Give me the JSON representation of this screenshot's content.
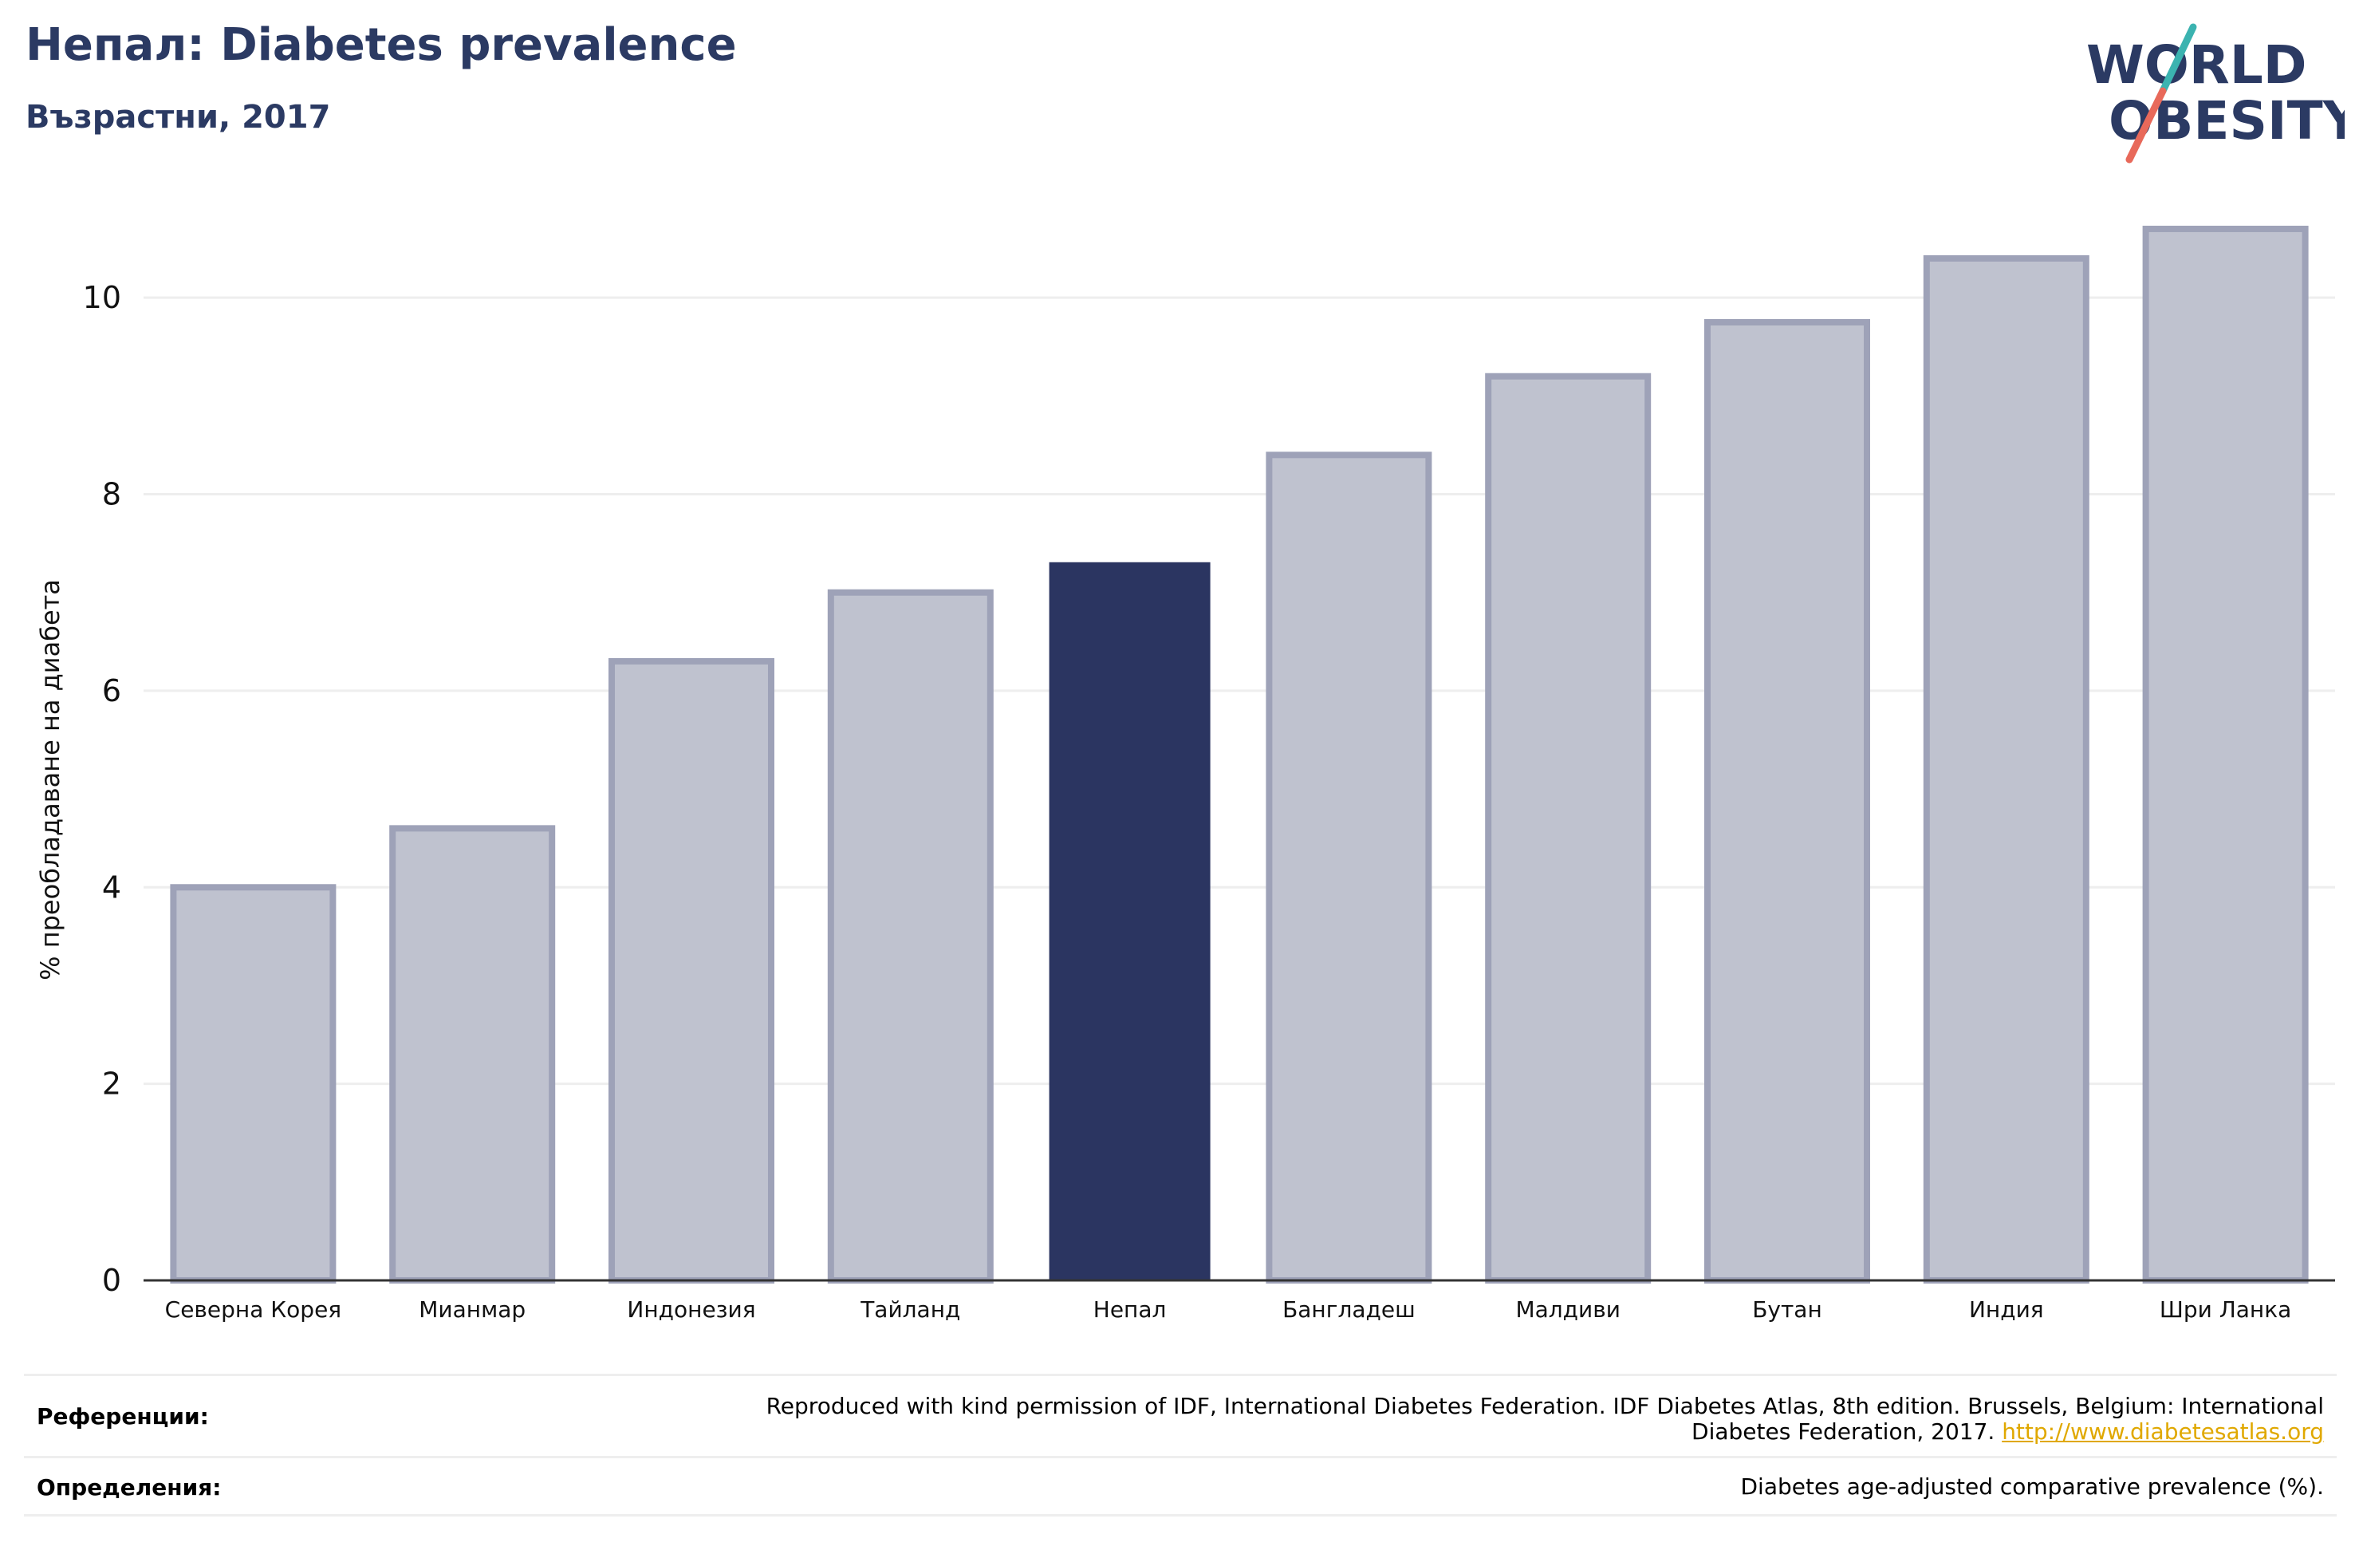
{
  "header": {
    "title": "Непал: Diabetes prevalence",
    "subtitle": "Възрастни, 2017"
  },
  "logo": {
    "line1": "WORLD",
    "line2": "OBESITY",
    "colors": {
      "navy": "#2b3a63",
      "teal": "#3bb3b0",
      "coral": "#e8695a"
    }
  },
  "chart_data": {
    "type": "bar",
    "title": "Непал: Diabetes prevalence",
    "subtitle": "Възрастни, 2017",
    "ylabel": "% преобладаване на диабета",
    "xlabel": "",
    "ylim": [
      0,
      11
    ],
    "yticks": [
      0,
      2,
      4,
      6,
      8,
      10
    ],
    "grid": true,
    "categories": [
      "Северна Корея",
      "Мианмар",
      "Индонезия",
      "Тайланд",
      "Непал",
      "Бангладеш",
      "Малдиви",
      "Бутан",
      "Индия",
      "Шри Ланка"
    ],
    "values": [
      4.0,
      4.6,
      6.3,
      7.0,
      7.3,
      8.4,
      9.2,
      9.75,
      10.4,
      10.7
    ],
    "highlight": "Непал",
    "colors": {
      "bar": "#bfc2cf",
      "bar_edge": "#9ea2b8",
      "highlight": "#2b3561",
      "grid": "#eeeeee",
      "axis": "#333333"
    }
  },
  "footer": {
    "references_label": "Референции:",
    "references_line1": "Reproduced with kind permission of IDF, International Diabetes Federation. IDF Diabetes Atlas, 8th edition. Brussels, Belgium: International",
    "references_line2": "Diabetes Federation, 2017. ",
    "references_link": "http://www.diabetesatlas.org",
    "definitions_label": "Определения:",
    "definitions_text": "Diabetes age-adjusted comparative prevalence (%)."
  }
}
